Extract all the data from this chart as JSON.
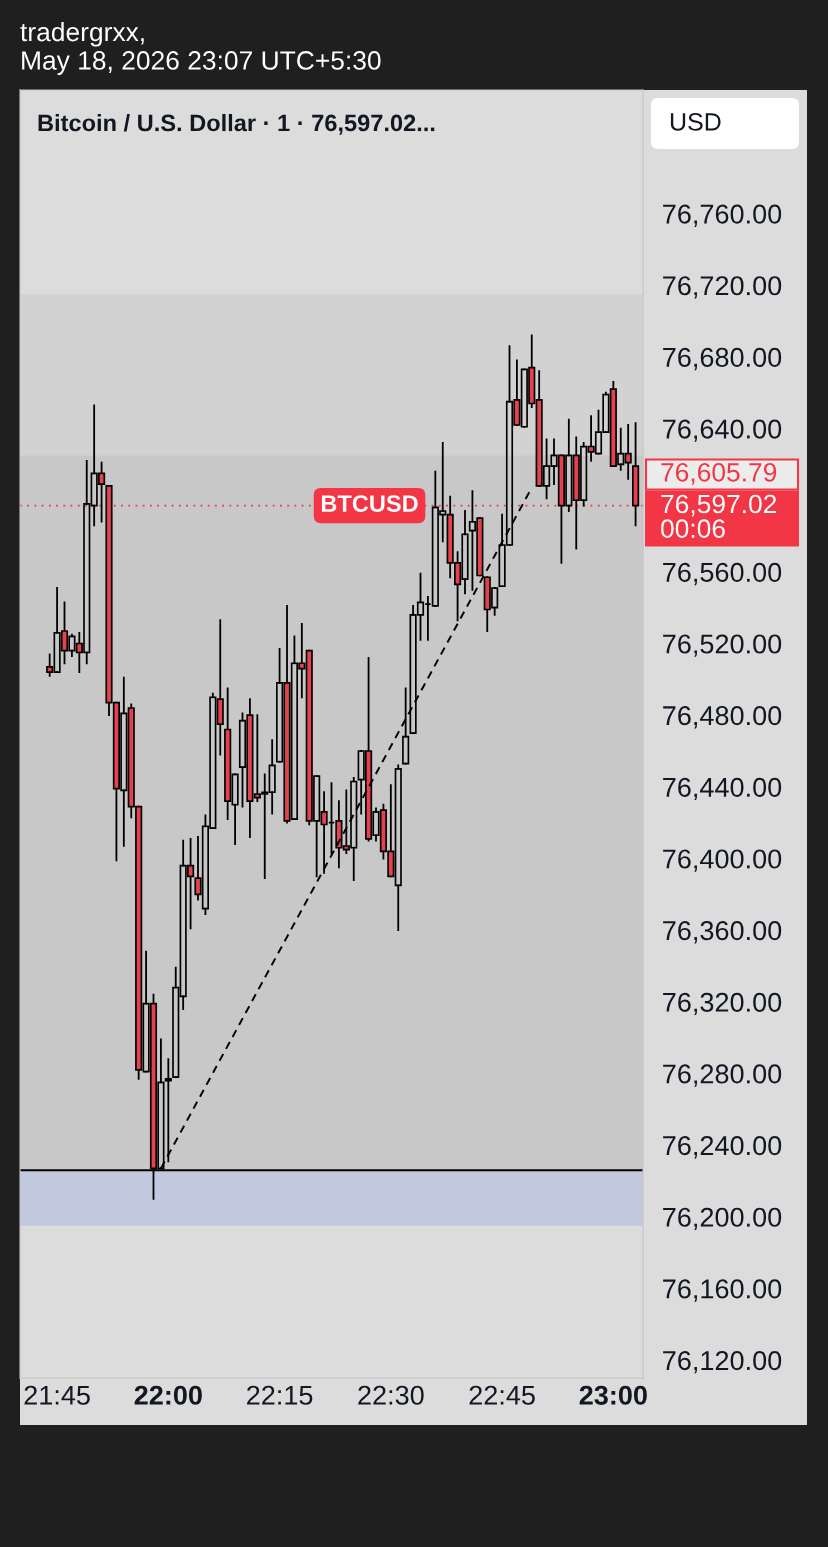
{
  "chart_data": {
    "type": "candlestick",
    "title": "Bitcoin / U.S. Dollar · 1 · 76,597.02...",
    "subtitle": "tradergrxx,\nMay 18, 2026 23:07 UTC+5:30",
    "ylabel": "USD",
    "x": [
      "2026-05-18T21:44",
      "2026-05-18T21:45",
      "2026-05-18T21:46",
      "2026-05-18T21:47",
      "2026-05-18T21:48",
      "2026-05-18T21:49",
      "2026-05-18T21:50",
      "2026-05-18T21:51",
      "2026-05-18T21:52",
      "2026-05-18T21:53",
      "2026-05-18T21:54",
      "2026-05-18T21:55",
      "2026-05-18T21:56",
      "2026-05-18T21:57",
      "2026-05-18T21:58",
      "2026-05-18T21:59",
      "2026-05-18T22:00",
      "2026-05-18T22:01",
      "2026-05-18T22:02",
      "2026-05-18T22:03",
      "2026-05-18T22:04",
      "2026-05-18T22:05",
      "2026-05-18T22:06",
      "2026-05-18T22:07",
      "2026-05-18T22:08",
      "2026-05-18T22:09",
      "2026-05-18T22:10",
      "2026-05-18T22:11",
      "2026-05-18T22:12",
      "2026-05-18T22:13",
      "2026-05-18T22:14",
      "2026-05-18T22:15",
      "2026-05-18T22:16",
      "2026-05-18T22:17",
      "2026-05-18T22:18",
      "2026-05-18T22:19",
      "2026-05-18T22:20",
      "2026-05-18T22:21",
      "2026-05-18T22:22",
      "2026-05-18T22:23",
      "2026-05-18T22:24",
      "2026-05-18T22:25",
      "2026-05-18T22:26",
      "2026-05-18T22:27",
      "2026-05-18T22:28",
      "2026-05-18T22:29",
      "2026-05-18T22:30",
      "2026-05-18T22:31",
      "2026-05-18T22:32",
      "2026-05-18T22:33",
      "2026-05-18T22:34",
      "2026-05-18T22:35",
      "2026-05-18T22:36",
      "2026-05-18T22:37",
      "2026-05-18T22:38",
      "2026-05-18T22:39",
      "2026-05-18T22:40",
      "2026-05-18T22:41",
      "2026-05-18T22:42",
      "2026-05-18T22:43",
      "2026-05-18T22:44",
      "2026-05-18T22:45",
      "2026-05-18T22:46",
      "2026-05-18T22:47",
      "2026-05-18T22:48",
      "2026-05-18T22:49",
      "2026-05-18T22:50",
      "2026-05-18T22:51",
      "2026-05-18T22:52",
      "2026-05-18T22:53",
      "2026-05-18T22:54",
      "2026-05-18T22:55",
      "2026-05-18T22:56",
      "2026-05-18T22:57",
      "2026-05-18T22:58",
      "2026-05-18T22:59",
      "2026-05-18T23:00",
      "2026-05-18T23:01",
      "2026-05-18T23:02",
      "2026-05-18T23:03"
    ],
    "ohlc": [
      [
        76507,
        76514,
        76502,
        76504
      ],
      [
        76504,
        76551,
        76504,
        76526
      ],
      [
        76527,
        76543,
        76509,
        76516
      ],
      [
        76516,
        76525,
        76513,
        76524
      ],
      [
        76520,
        76526,
        76504,
        76515
      ],
      [
        76515,
        76622,
        76509,
        76598
      ],
      [
        76597,
        76653,
        76586,
        76615
      ],
      [
        76615,
        76621,
        76588,
        76609
      ],
      [
        76608,
        76608,
        76480,
        76487
      ],
      [
        76487,
        76487,
        76399,
        76439
      ],
      [
        76438,
        76501,
        76407,
        76481
      ],
      [
        76484,
        76486,
        76423,
        76429
      ],
      [
        76429,
        76429,
        76277,
        76282
      ],
      [
        76281,
        76348,
        76281,
        76319
      ],
      [
        76319,
        76324,
        76210,
        76227
      ],
      [
        76227,
        76299,
        76227,
        76275
      ],
      [
        76276,
        76288,
        76231,
        76277
      ],
      [
        76278,
        76339,
        76278,
        76328
      ],
      [
        76323,
        76410,
        76316,
        76396
      ],
      [
        76396,
        76411,
        76361,
        76390
      ],
      [
        76389,
        76412,
        76377,
        76380
      ],
      [
        76372,
        76424,
        76369,
        76418
      ],
      [
        76417,
        76492,
        76417,
        76490
      ],
      [
        76489,
        76533,
        76458,
        76475
      ],
      [
        76472,
        76495,
        76422,
        76432
      ],
      [
        76430,
        76447,
        76408,
        76447
      ],
      [
        76451,
        76481,
        76429,
        76477
      ],
      [
        76480,
        76489,
        76412,
        76432
      ],
      [
        76436,
        76480,
        76432,
        76434
      ],
      [
        76436,
        76447,
        76389,
        76437
      ],
      [
        76437,
        76466,
        76425,
        76452
      ],
      [
        76454,
        76517,
        76454,
        76498
      ],
      [
        76498,
        76541,
        76420,
        76421
      ],
      [
        76422,
        76524,
        76422,
        76509
      ],
      [
        76509,
        76531,
        76490,
        76506
      ],
      [
        76516,
        76516,
        76419,
        76421
      ],
      [
        76421,
        76446,
        76390,
        76446
      ],
      [
        76426,
        76437,
        76392,
        76419
      ],
      [
        76420,
        76442,
        76403,
        76420
      ],
      [
        76421,
        76432,
        76395,
        76406
      ],
      [
        76407,
        76438,
        76403,
        76405
      ],
      [
        76406,
        76445,
        76388,
        76443
      ],
      [
        76444,
        76460,
        76425,
        76460
      ],
      [
        76460,
        76512,
        76410,
        76411
      ],
      [
        76413,
        76428,
        76410,
        76426
      ],
      [
        76427,
        76430,
        76400,
        76404
      ],
      [
        76404,
        76441,
        76390,
        76390
      ],
      [
        76385,
        76452,
        76360,
        76450
      ],
      [
        76453,
        76495,
        76453,
        76468
      ],
      [
        76470,
        76541,
        76470,
        76536
      ],
      [
        76536,
        76559,
        76522,
        76543
      ],
      [
        76542,
        76546,
        76522,
        76542
      ],
      [
        76541,
        76616,
        76541,
        76596
      ],
      [
        76592,
        76632,
        76577,
        76594
      ],
      [
        76592,
        76602,
        76557,
        76565
      ],
      [
        76565,
        76571,
        76533,
        76553
      ],
      [
        76556,
        76594,
        76548,
        76581
      ],
      [
        76583,
        76605,
        76550,
        76588
      ],
      [
        76590,
        76590,
        76558,
        76558
      ],
      [
        76557,
        76557,
        76527,
        76539
      ],
      [
        76540,
        76551,
        76536,
        76551
      ],
      [
        76552,
        76592,
        76552,
        76575
      ],
      [
        76575,
        76686,
        76575,
        76655
      ],
      [
        76656,
        76678,
        76642,
        76642
      ],
      [
        76641,
        76673,
        76641,
        76673
      ],
      [
        76674,
        76692,
        76652,
        76654
      ],
      [
        76656,
        76672,
        76608,
        76608
      ],
      [
        76608,
        76634,
        76601,
        76619
      ],
      [
        76619,
        76634,
        76609,
        76625
      ],
      [
        76625,
        76625,
        76565,
        76597
      ],
      [
        76597,
        76645,
        76594,
        76625
      ],
      [
        76625,
        76635,
        76573,
        76600
      ],
      [
        76600,
        76632,
        76597,
        76630
      ],
      [
        76630,
        76647,
        76622,
        76627
      ],
      [
        76626,
        76650,
        76626,
        76638
      ],
      [
        76638,
        76660,
        76638,
        76659
      ],
      [
        76662,
        76666,
        76619,
        76619
      ],
      [
        76620,
        76640,
        76617,
        76626
      ],
      [
        76626,
        76642,
        76612,
        76621
      ],
      [
        76619,
        76643,
        76586,
        76597.02
      ]
    ],
    "colors": [
      "#e5424d",
      "#000000",
      "#e5424d",
      "#000000",
      "#e5424d",
      "#000000",
      "#000000",
      "#e5424d",
      "#e5424d",
      "#e5424d",
      "#000000",
      "#e5424d",
      "#e5424d",
      "#000000",
      "#e5424d",
      "#000000",
      "#000000",
      "#000000",
      "#000000",
      "#e5424d",
      "#e5424d",
      "#000000",
      "#000000",
      "#e5424d",
      "#e5424d",
      "#000000",
      "#000000",
      "#e5424d",
      "#e5424d",
      "#000000",
      "#000000",
      "#000000",
      "#e5424d",
      "#000000",
      "#e5424d",
      "#e5424d",
      "#000000",
      "#e5424d",
      "#000000",
      "#e5424d",
      "#e5424d",
      "#000000",
      "#000000",
      "#e5424d",
      "#000000",
      "#e5424d",
      "#e5424d",
      "#000000",
      "#000000",
      "#000000",
      "#000000",
      "#000000",
      "#000000",
      "#000000",
      "#e5424d",
      "#e5424d",
      "#000000",
      "#000000",
      "#e5424d",
      "#e5424d",
      "#000000",
      "#000000",
      "#000000",
      "#e5424d",
      "#000000",
      "#e5424d",
      "#e5424d",
      "#000000",
      "#000000",
      "#e5424d",
      "#000000",
      "#e5424d",
      "#000000",
      "#e5424d",
      "#000000",
      "#000000",
      "#e5424d",
      "#000000",
      "#e5424d",
      "#e5424d"
    ],
    "series": [
      {
        "type": "line",
        "x": [
          "2026-05-18T21:59",
          "2026-05-18T22:49"
        ],
        "values": [
          76227,
          76607
        ],
        "color": "#000000",
        "line_style": "dashed"
      }
    ],
    "xlim": [
      "2026-05-18T21:40",
      "2026-05-18T23:04"
    ],
    "xticks": [
      {
        "value": "2026-05-18T21:45",
        "label": "21:45"
      },
      {
        "value": "2026-05-18T22:00",
        "label": "22:00"
      },
      {
        "value": "2026-05-18T22:15",
        "label": "22:15"
      },
      {
        "value": "2026-05-18T22:30",
        "label": "22:30"
      },
      {
        "value": "2026-05-18T22:45",
        "label": "22:45"
      },
      {
        "value": "2026-05-18T23:00",
        "label": "23:00"
      }
    ],
    "ylim": [
      76110,
      76829
    ],
    "yticks": [
      {
        "value": 76120,
        "label": "76,120.00"
      },
      {
        "value": 76160,
        "label": "76,160.00"
      },
      {
        "value": 76200,
        "label": "76,200.00"
      },
      {
        "value": 76240,
        "label": "76,240.00"
      },
      {
        "value": 76280,
        "label": "76,280.00"
      },
      {
        "value": 76320,
        "label": "76,320.00"
      },
      {
        "value": 76360,
        "label": "76,360.00"
      },
      {
        "value": 76400,
        "label": "76,400.00"
      },
      {
        "value": 76440,
        "label": "76,440.00"
      },
      {
        "value": 76480,
        "label": "76,480.00"
      },
      {
        "value": 76520,
        "label": "76,520.00"
      },
      {
        "value": 76560,
        "label": "76,560.00"
      },
      {
        "value": 76640,
        "label": "76,640.00"
      },
      {
        "value": 76680,
        "label": "76,680.00"
      },
      {
        "value": 76720,
        "label": "76,720.00"
      },
      {
        "value": 76760,
        "label": "76,760.00"
      }
    ],
    "bands": [
      {
        "axis": "y",
        "from": 76226,
        "to": 76715,
        "color": "#d2d2d2"
      },
      {
        "axis": "y",
        "from": 76226,
        "to": 76625,
        "color": "#c8c8c8"
      },
      {
        "axis": "y",
        "from": 76195,
        "to": 76226,
        "color": "#c2c9df"
      }
    ],
    "ref_lines": [
      {
        "axis": "y",
        "value": 76597.02,
        "label": "BTCUSD",
        "color": "#f23645",
        "line_style": "dotted"
      },
      {
        "axis": "y",
        "value": 76226,
        "color": "#000000",
        "line_style": "solid"
      }
    ],
    "annotations": [
      "76,597.02\n00:06",
      "76,605.79"
    ]
  }
}
